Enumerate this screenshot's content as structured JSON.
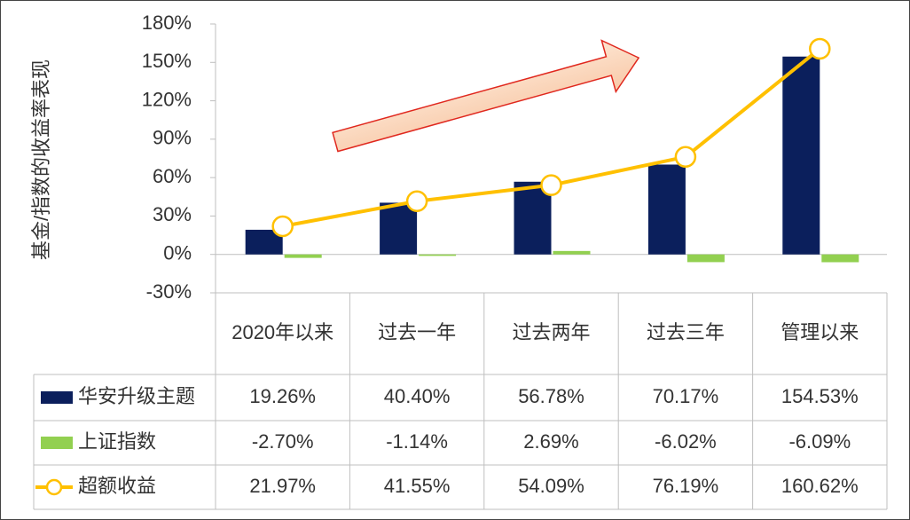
{
  "chart_data": {
    "type": "bar-line-table",
    "y_label": "基金/指数的收益率表现",
    "categories": [
      "2020年以来",
      "过去一年",
      "过去两年",
      "过去三年",
      "管理以来"
    ],
    "series": [
      {
        "name": "华安升级主题",
        "type": "bar",
        "color": "#0b1f5c",
        "values": [
          19.26,
          40.4,
          56.78,
          70.17,
          154.53
        ],
        "value_labels": [
          "19.26%",
          "40.40%",
          "56.78%",
          "70.17%",
          "154.53%"
        ]
      },
      {
        "name": "上证指数",
        "type": "bar",
        "color": "#92d050",
        "values": [
          -2.7,
          -1.14,
          2.69,
          -6.02,
          -6.09
        ],
        "value_labels": [
          "-2.70%",
          "-1.14%",
          "2.69%",
          "-6.02%",
          "-6.09%"
        ]
      },
      {
        "name": "超额收益",
        "type": "line",
        "color": "#ffc000",
        "values": [
          21.97,
          41.55,
          54.09,
          76.19,
          160.62
        ],
        "value_labels": [
          "21.97%",
          "41.55%",
          "54.09%",
          "76.19%",
          "160.62%"
        ]
      }
    ],
    "ylim": [
      -30,
      180
    ],
    "yticks": [
      {
        "value": -30,
        "label": "-30%"
      },
      {
        "value": 0,
        "label": "0%"
      },
      {
        "value": 30,
        "label": "30%"
      },
      {
        "value": 60,
        "label": "60%"
      },
      {
        "value": 90,
        "label": "90%"
      },
      {
        "value": 120,
        "label": "120%"
      },
      {
        "value": 150,
        "label": "150%"
      },
      {
        "value": 180,
        "label": "180%"
      }
    ],
    "grid": false
  }
}
